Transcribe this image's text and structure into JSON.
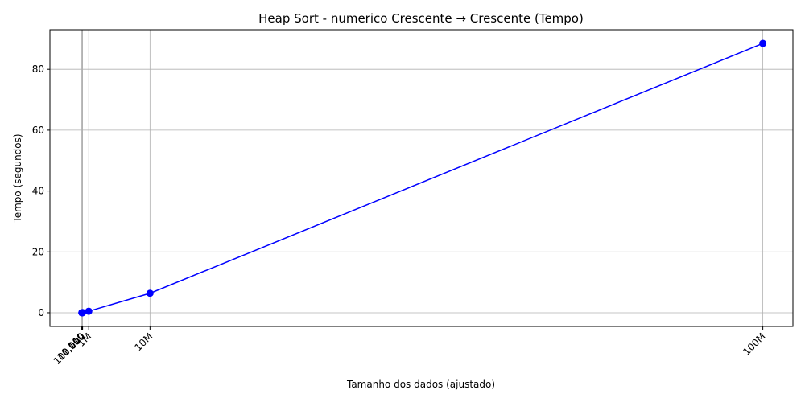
{
  "chart_data": {
    "type": "line",
    "title": "Heap Sort - numerico Crescente → Crescente (Tempo)",
    "xlabel": "Tamanho dos dados (ajustado)",
    "ylabel": "Tempo (segundos)",
    "ylim": [
      -4.5,
      93
    ],
    "y_ticks": [
      0,
      20,
      40,
      60,
      80
    ],
    "grid": true,
    "line_color": "#0000ff",
    "x_ticks": [
      {
        "value": 10,
        "label": "10"
      },
      {
        "value": 100,
        "label": "100"
      },
      {
        "value": 1000,
        "label": "1,000"
      },
      {
        "value": 10000,
        "label": "10,000"
      },
      {
        "value": 100000,
        "label": "100,000"
      },
      {
        "value": 1000000,
        "label": "1M"
      },
      {
        "value": 10000000,
        "label": "10M"
      },
      {
        "value": 100000000,
        "label": "100M"
      }
    ],
    "series": [
      {
        "x": [
          10,
          100,
          1000,
          10000,
          100000,
          1000000,
          10000000,
          100000000
        ],
        "y": [
          0.0,
          0.0,
          0.0,
          0.01,
          0.05,
          0.5,
          6.4,
          88.5
        ]
      }
    ]
  }
}
